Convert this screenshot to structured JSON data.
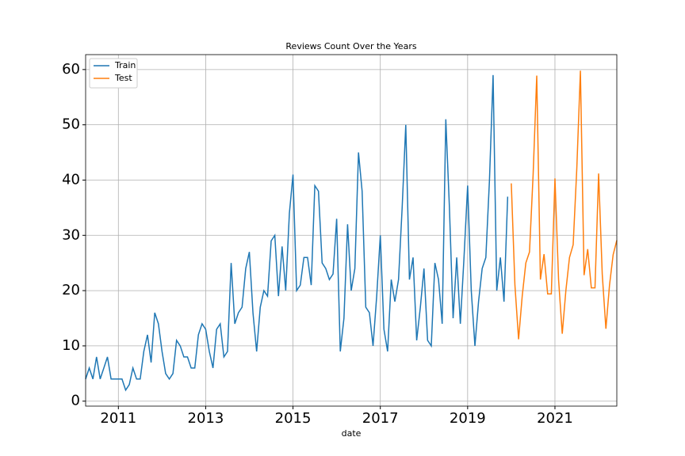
{
  "chart_data": {
    "type": "line",
    "title": "Reviews Count Over the Years",
    "x_label": "date",
    "xlim": [
      2010.25,
      2022.417
    ],
    "ylim": [
      -0.9,
      62.7
    ],
    "xticks": [
      2011,
      2013,
      2015,
      2017,
      2019,
      2021
    ],
    "yticks": [
      0,
      10,
      20,
      30,
      40,
      50,
      60
    ],
    "grid": true,
    "legend": "upper-left",
    "series": [
      {
        "name": "Train",
        "color": "#1f77b4",
        "x": [
          2010.25,
          2010.333,
          2010.417,
          2010.5,
          2010.583,
          2010.667,
          2010.75,
          2010.833,
          2010.917,
          2011,
          2011.083,
          2011.167,
          2011.25,
          2011.333,
          2011.417,
          2011.5,
          2011.583,
          2011.667,
          2011.75,
          2011.833,
          2011.917,
          2012,
          2012.083,
          2012.167,
          2012.25,
          2012.333,
          2012.417,
          2012.5,
          2012.583,
          2012.667,
          2012.75,
          2012.833,
          2012.917,
          2013,
          2013.083,
          2013.167,
          2013.25,
          2013.333,
          2013.417,
          2013.5,
          2013.583,
          2013.667,
          2013.75,
          2013.833,
          2013.917,
          2014,
          2014.083,
          2014.167,
          2014.25,
          2014.333,
          2014.417,
          2014.5,
          2014.583,
          2014.667,
          2014.75,
          2014.833,
          2014.917,
          2015,
          2015.083,
          2015.167,
          2015.25,
          2015.333,
          2015.417,
          2015.5,
          2015.583,
          2015.667,
          2015.75,
          2015.833,
          2015.917,
          2016,
          2016.083,
          2016.167,
          2016.25,
          2016.333,
          2016.417,
          2016.5,
          2016.583,
          2016.667,
          2016.75,
          2016.833,
          2016.917,
          2017,
          2017.083,
          2017.167,
          2017.25,
          2017.333,
          2017.417,
          2017.5,
          2017.583,
          2017.667,
          2017.75,
          2017.833,
          2017.917,
          2018,
          2018.083,
          2018.167,
          2018.25,
          2018.333,
          2018.417,
          2018.5,
          2018.583,
          2018.667,
          2018.75,
          2018.833,
          2018.917,
          2019,
          2019.083,
          2019.167,
          2019.25,
          2019.333,
          2019.417,
          2019.5,
          2019.583,
          2019.667,
          2019.75,
          2019.833,
          2019.917
        ],
        "values": [
          4,
          6,
          4,
          8,
          4,
          6,
          8,
          4,
          4,
          4,
          4,
          2,
          3,
          6,
          4,
          4,
          9,
          12,
          7,
          16,
          14,
          9,
          5,
          4,
          5,
          11,
          10,
          8,
          8,
          6,
          6,
          12,
          14,
          13,
          9,
          6,
          13,
          14,
          8,
          9,
          25,
          14,
          16,
          17,
          24,
          27,
          16,
          9,
          17,
          20,
          19,
          29,
          30,
          19,
          28,
          20,
          34,
          41,
          20,
          21,
          26,
          26,
          21,
          39,
          38,
          25,
          24,
          22,
          23,
          33,
          9,
          15,
          32,
          20,
          24,
          45,
          38,
          17,
          16,
          10,
          19,
          30,
          13,
          9,
          22,
          18,
          22,
          35,
          50,
          22,
          26,
          11,
          17,
          24,
          11,
          10,
          25,
          22,
          14,
          51,
          35,
          15,
          26,
          14,
          26,
          39,
          20,
          10,
          18,
          24,
          26,
          40,
          59,
          20,
          26,
          18,
          37
        ]
      },
      {
        "name": "Test",
        "color": "#ff7f0e",
        "x": [
          2020,
          2020.083,
          2020.167,
          2020.25,
          2020.333,
          2020.417,
          2020.5,
          2020.583,
          2020.667,
          2020.75,
          2020.833,
          2020.917,
          2021,
          2021.083,
          2021.167,
          2021.25,
          2021.333,
          2021.417,
          2021.5,
          2021.583,
          2021.667,
          2021.75,
          2021.833,
          2021.917,
          2022,
          2022.083,
          2022.167,
          2022.25,
          2022.333,
          2022.417
        ],
        "values": [
          39.4,
          21,
          11.2,
          19,
          25,
          27,
          41,
          58.9,
          22,
          26.6,
          19.4,
          19.4,
          40.3,
          22,
          12.2,
          20,
          26,
          28.3,
          42,
          59.8,
          22.8,
          27.5,
          20.5,
          20.5,
          41.2,
          23,
          13.1,
          21,
          26.5,
          29.1
        ]
      }
    ]
  }
}
